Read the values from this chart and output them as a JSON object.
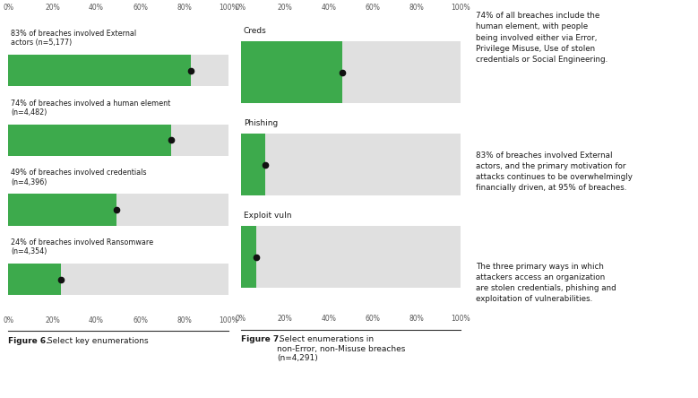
{
  "fig6_bars": [
    {
      "label": "83% of breaches involved External\nactors (n=5,177)",
      "value": 83,
      "dot": 83
    },
    {
      "label": "74% of breaches involved a human element\n(n=4,482)",
      "value": 74,
      "dot": 74
    },
    {
      "label": "49% of breaches involved credentials\n(n=4,396)",
      "value": 49,
      "dot": 49
    },
    {
      "label": "24% of breaches involved Ransomware\n(n=4,354)",
      "value": 24,
      "dot": 24
    }
  ],
  "fig7_bars": [
    {
      "label": "Creds",
      "value": 46,
      "dot": 46
    },
    {
      "label": "Phishing",
      "value": 11,
      "dot": 11
    },
    {
      "label": "Exploit vuln",
      "value": 7,
      "dot": 7
    }
  ],
  "bar_color": "#3DAA4C",
  "bg_color": "#e0e0e0",
  "dot_color": "#111111",
  "fig6_caption_bold": "Figure 6.",
  "fig6_caption_rest": " Select key enumerations",
  "fig7_caption_bold": "Figure 7.",
  "fig7_caption_rest": " Select enumerations in\nnon-Error, non-Misuse breaches\n(n=4,291)",
  "text_paragraph1": "74% of all breaches include the\nhuman element, with people\nbeing involved either via Error,\nPrivilege Misuse, Use of stolen\ncredentials or Social Engineering.",
  "text_paragraph2": "83% of breaches involved External\nactors, and the primary motivation for\nattacks continues to be overwhelmingly\nfinancially driven, at 95% of breaches.",
  "text_paragraph3": "The three primary ways in which\nattackers access an organization\nare stolen credentials, phishing and\nexploitation of vulnerabilities.",
  "text_color": "#1a1a1a",
  "caption_color": "#1a1a1a",
  "xtick_labels": [
    "0%",
    "20%",
    "40%",
    "60%",
    "80%",
    "100%"
  ],
  "xtick_vals": [
    0,
    20,
    40,
    60,
    80,
    100
  ]
}
